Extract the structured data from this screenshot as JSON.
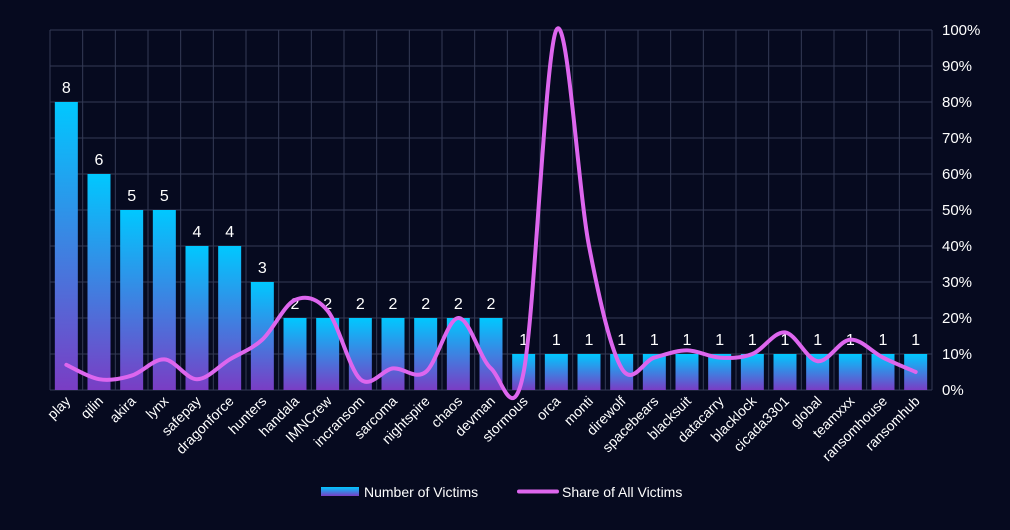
{
  "chart_data": {
    "type": "bar",
    "categories": [
      "play",
      "qilin",
      "akira",
      "lynx",
      "safepay",
      "dragonforce",
      "hunters",
      "handala",
      "IMNCrew",
      "incransom",
      "sarcoma",
      "nightspire",
      "chaos",
      "devman",
      "stormous",
      "orca",
      "monti",
      "direwolf",
      "spacebears",
      "blacksuit",
      "datacarry",
      "blacklock",
      "cicada3301",
      "global",
      "teamxxx",
      "ransomhouse",
      "ransomhub"
    ],
    "series": [
      {
        "name": "Number of Victims",
        "type": "bar",
        "axis": "left",
        "values": [
          8,
          6,
          5,
          5,
          4,
          4,
          3,
          2,
          2,
          2,
          2,
          2,
          2,
          2,
          1,
          1,
          1,
          1,
          1,
          1,
          1,
          1,
          1,
          1,
          1,
          1,
          1
        ],
        "data_labels": [
          "8",
          "6",
          "5",
          "5",
          "4",
          "4",
          "3",
          "2",
          "2",
          "2",
          "2",
          "2",
          "2",
          "2",
          "1",
          "1",
          "1",
          "1",
          "1",
          "1",
          "1",
          "1",
          "1",
          "1",
          "1",
          "1",
          "1"
        ]
      },
      {
        "name": "Share of All Victims",
        "type": "line",
        "axis": "right",
        "values": [
          7,
          3,
          4,
          8.5,
          3,
          8.5,
          14,
          25,
          22,
          3,
          6,
          5,
          20,
          6,
          5,
          100,
          40,
          6,
          9,
          11,
          9,
          10,
          16,
          8,
          14,
          9,
          5
        ]
      }
    ],
    "ylim_left": [
      0,
      10
    ],
    "ylim_right": [
      0,
      100
    ],
    "right_ticks": [
      "0%",
      "10%",
      "20%",
      "30%",
      "40%",
      "50%",
      "60%",
      "70%",
      "80%",
      "90%",
      "100%"
    ],
    "grid": true,
    "legend_position": "bottom",
    "colors": {
      "background": "#060a1f",
      "bar_top": "#00c8ff",
      "bar_bottom": "#7a3dc4",
      "line": "#dd66ee",
      "grid": "#343a55"
    }
  }
}
